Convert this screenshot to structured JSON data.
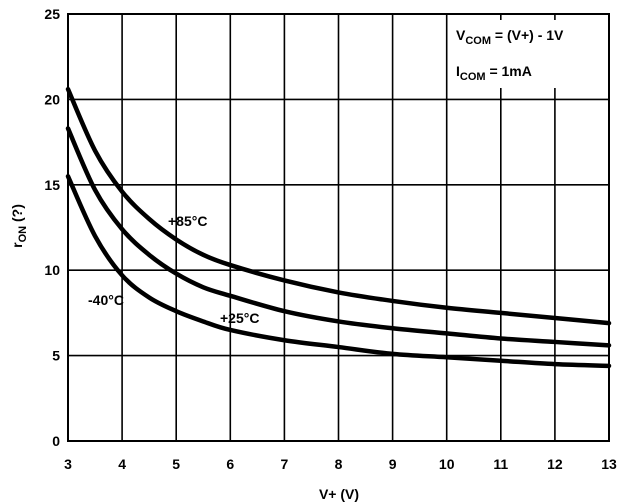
{
  "chart_data": {
    "type": "line",
    "title": "",
    "xlabel": "V+ (V)",
    "ylabel": "r",
    "ylabel_sub": "ON",
    "ylabel_suffix": " (?)",
    "xlim": [
      3,
      13
    ],
    "ylim": [
      0,
      25
    ],
    "x_ticks": [
      3,
      4,
      5,
      6,
      7,
      8,
      9,
      10,
      11,
      12,
      13
    ],
    "y_ticks": [
      0,
      5,
      10,
      15,
      20,
      25
    ],
    "grid": true,
    "legend": "none",
    "annotations": [
      {
        "main": "V",
        "sub": "COM",
        "rest": " = (V+) - 1V"
      },
      {
        "main": "I",
        "sub": "COM",
        "rest": " = 1mA"
      }
    ],
    "series": [
      {
        "name": "+85°C",
        "x": [
          3,
          3.5,
          4,
          4.5,
          5,
          5.5,
          6,
          7,
          8,
          9,
          10,
          11,
          12,
          13
        ],
        "values": [
          20.6,
          17.0,
          14.6,
          13.0,
          11.8,
          10.9,
          10.3,
          9.4,
          8.7,
          8.2,
          7.8,
          7.5,
          7.2,
          6.9
        ]
      },
      {
        "name": "+25°C",
        "x": [
          3,
          3.5,
          4,
          4.5,
          5,
          5.5,
          6,
          7,
          8,
          9,
          10,
          11,
          12,
          13
        ],
        "values": [
          18.3,
          14.7,
          12.4,
          10.9,
          9.8,
          9.0,
          8.5,
          7.6,
          7.0,
          6.6,
          6.3,
          6.0,
          5.8,
          5.6
        ]
      },
      {
        "name": "-40°C",
        "x": [
          3,
          3.5,
          4,
          4.5,
          5,
          5.5,
          6,
          7,
          8,
          9,
          10,
          11,
          12,
          13
        ],
        "values": [
          15.5,
          12.0,
          9.7,
          8.4,
          7.6,
          7.0,
          6.5,
          5.9,
          5.5,
          5.1,
          4.9,
          4.7,
          4.5,
          4.4
        ]
      }
    ]
  }
}
